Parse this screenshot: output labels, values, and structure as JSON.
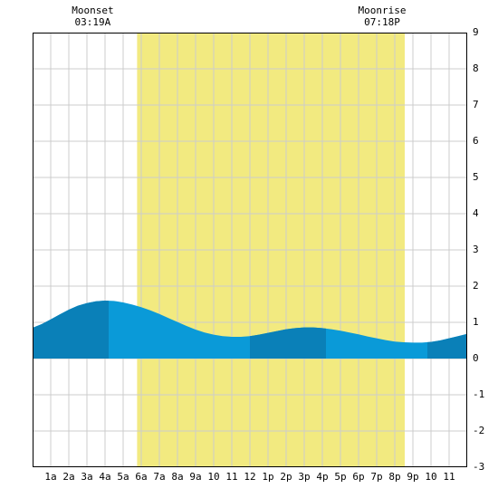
{
  "chart_data": {
    "type": "area",
    "title": "",
    "xlabel": "",
    "ylabel": "",
    "ylim": [
      -3,
      9
    ],
    "xlim": [
      0,
      24
    ],
    "grid": true,
    "x_tick_labels": [
      "1a",
      "2a",
      "3a",
      "4a",
      "5a",
      "6a",
      "7a",
      "8a",
      "9a",
      "10",
      "11",
      "12",
      "1p",
      "2p",
      "3p",
      "4p",
      "5p",
      "6p",
      "7p",
      "8p",
      "9p",
      "10",
      "11"
    ],
    "y_tick_labels": [
      "-3",
      "-2",
      "-1",
      "0",
      "1",
      "2",
      "3",
      "4",
      "5",
      "6",
      "7",
      "8",
      "9"
    ],
    "daylight": {
      "start": 5.77,
      "end": 20.55
    },
    "events": [
      {
        "label": "Moonset",
        "time": "03:19A",
        "x": 3.32
      },
      {
        "label": "Moonrise",
        "time": "07:18P",
        "x": 19.3
      }
    ],
    "series": [
      {
        "values_x": [
          0,
          0.5,
          1,
          1.5,
          2,
          2.5,
          3,
          3.5,
          4,
          4.5,
          5,
          5.5,
          6,
          6.5,
          7,
          7.5,
          8,
          8.5,
          9,
          9.5,
          10,
          10.5,
          11,
          11.5,
          12,
          12.5,
          13,
          13.5,
          14,
          14.5,
          15,
          15.5,
          16,
          16.5,
          17,
          17.5,
          18,
          18.5,
          19,
          19.5,
          20,
          20.5,
          21,
          21.5,
          22,
          22.5,
          23,
          23.5,
          24
        ],
        "values_y": [
          0.85,
          0.95,
          1.08,
          1.22,
          1.35,
          1.46,
          1.53,
          1.58,
          1.6,
          1.59,
          1.55,
          1.49,
          1.42,
          1.33,
          1.23,
          1.12,
          1.01,
          0.9,
          0.8,
          0.72,
          0.66,
          0.62,
          0.6,
          0.6,
          0.62,
          0.66,
          0.71,
          0.76,
          0.81,
          0.84,
          0.86,
          0.86,
          0.84,
          0.81,
          0.77,
          0.72,
          0.67,
          0.61,
          0.56,
          0.51,
          0.47,
          0.45,
          0.44,
          0.44,
          0.46,
          0.5,
          0.56,
          0.62,
          0.68
        ]
      }
    ],
    "colors": {
      "daylight": "#f2ea80",
      "tide_light": "#0a9ad8",
      "tide_dark": "#0a80b8",
      "grid": "#cccccc",
      "axis": "#000000"
    },
    "dark_bands": [
      [
        0,
        4.2
      ],
      [
        12,
        16.2
      ],
      [
        21.8,
        24
      ]
    ]
  }
}
